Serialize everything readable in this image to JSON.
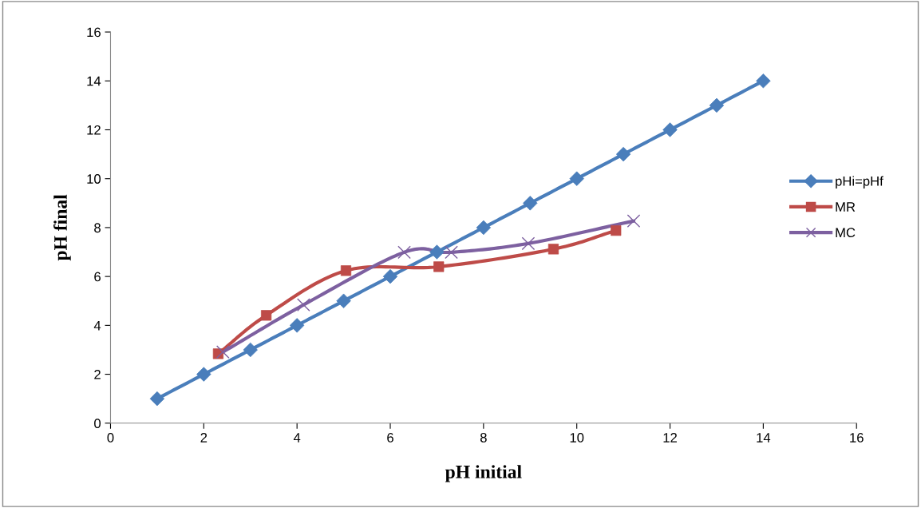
{
  "chart_data": {
    "type": "line",
    "xlabel": "pH initial",
    "ylabel": "pH final",
    "xlim": [
      0,
      16
    ],
    "ylim": [
      0,
      16
    ],
    "xticks": [
      0,
      2,
      4,
      6,
      8,
      10,
      12,
      14,
      16
    ],
    "yticks": [
      0,
      2,
      4,
      6,
      8,
      10,
      12,
      14,
      16
    ],
    "grid": false,
    "legend": "right",
    "series": [
      {
        "name": "pHi=pHf",
        "color": "#4a7ebb",
        "marker": "diamond",
        "x": [
          1,
          2,
          3,
          4,
          5,
          6,
          7,
          8,
          9,
          10,
          11,
          12,
          13,
          14
        ],
        "values": [
          1,
          2,
          3,
          4,
          5,
          6,
          7,
          8,
          9,
          10,
          11,
          12,
          13,
          14
        ]
      },
      {
        "name": "MR",
        "color": "#be4b48",
        "marker": "square",
        "x": [
          2.31,
          3.34,
          5.05,
          7.04,
          9.5,
          10.84
        ],
        "values": [
          2.84,
          4.41,
          6.24,
          6.4,
          7.12,
          7.88
        ]
      },
      {
        "name": "MC",
        "color": "#7d60a0",
        "marker": "cross",
        "x": [
          2.41,
          4.14,
          6.3,
          7.31,
          8.96,
          11.22
        ],
        "values": [
          2.91,
          4.84,
          6.99,
          6.99,
          7.35,
          8.27
        ]
      }
    ]
  }
}
